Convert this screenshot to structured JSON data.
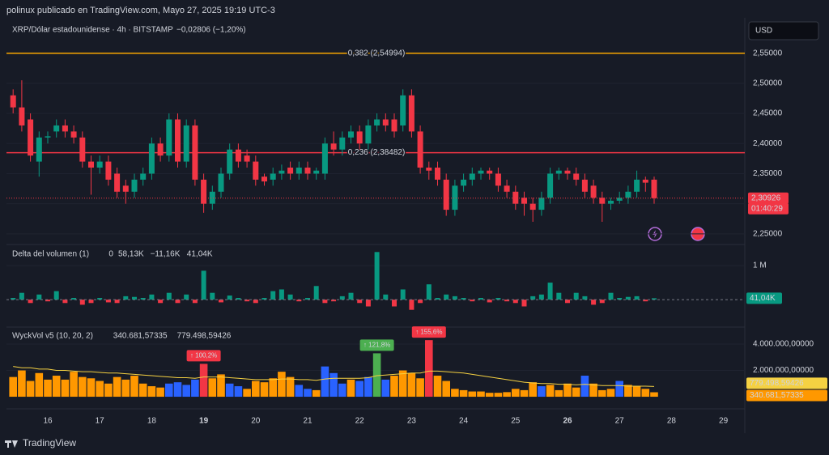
{
  "header": "polinux publicado en TradingView.com, Mayo 27, 2025 19:19 UTC-3",
  "currency": "USD",
  "footer": "TradingView",
  "x_labels": [
    {
      "label": "16",
      "bold": false
    },
    {
      "label": "17",
      "bold": false
    },
    {
      "label": "18",
      "bold": false
    },
    {
      "label": "19",
      "bold": true
    },
    {
      "label": "20",
      "bold": false
    },
    {
      "label": "21",
      "bold": false
    },
    {
      "label": "22",
      "bold": false
    },
    {
      "label": "23",
      "bold": false
    },
    {
      "label": "24",
      "bold": false
    },
    {
      "label": "25",
      "bold": false
    },
    {
      "label": "26",
      "bold": true
    },
    {
      "label": "27",
      "bold": false
    },
    {
      "label": "28",
      "bold": false
    },
    {
      "label": "29",
      "bold": false
    }
  ],
  "chart_data": [
    {
      "type": "candlestick",
      "title": "XRP/Dólar estadounidense · 4h · BITSTAMP",
      "change": "−0,02806 (−1,20%)",
      "up_color": "#089981",
      "down_color": "#f23645",
      "ylim": [
        2.235,
        2.598
      ],
      "yticks": [
        {
          "value": 2.55,
          "label": "2,55000"
        },
        {
          "value": 2.5,
          "label": "2,50000"
        },
        {
          "value": 2.45,
          "label": "2,45000"
        },
        {
          "value": 2.4,
          "label": "2,40000"
        },
        {
          "value": 2.35,
          "label": "2,35000"
        },
        {
          "value": 2.3,
          "label": "2,30000"
        },
        {
          "value": 2.25,
          "label": "2,25000"
        }
      ],
      "levels": [
        {
          "value": 2.54994,
          "label": "0,382 (2,54994)",
          "color": "#f7a600"
        },
        {
          "value": 2.38482,
          "label": "0,236 (2,38482)",
          "color": "#f23645"
        }
      ],
      "last_label": "2,30926",
      "countdown": "01:40:29",
      "candles": [
        [
          2.48,
          2.49,
          2.45,
          2.46
        ],
        [
          2.46,
          2.505,
          2.42,
          2.43
        ],
        [
          2.44,
          2.45,
          2.37,
          2.38
        ],
        [
          2.37,
          2.42,
          2.345,
          2.41
        ],
        [
          2.41,
          2.42,
          2.4,
          2.412
        ],
        [
          2.42,
          2.44,
          2.41,
          2.43
        ],
        [
          2.43,
          2.44,
          2.41,
          2.42
        ],
        [
          2.42,
          2.43,
          2.4,
          2.41
        ],
        [
          2.41,
          2.42,
          2.36,
          2.37
        ],
        [
          2.37,
          2.38,
          2.315,
          2.36
        ],
        [
          2.36,
          2.38,
          2.35,
          2.37
        ],
        [
          2.37,
          2.38,
          2.33,
          2.34
        ],
        [
          2.35,
          2.36,
          2.31,
          2.32
        ],
        [
          2.33,
          2.34,
          2.3,
          2.32
        ],
        [
          2.32,
          2.35,
          2.31,
          2.34
        ],
        [
          2.34,
          2.36,
          2.33,
          2.35
        ],
        [
          2.35,
          2.41,
          2.34,
          2.4
        ],
        [
          2.4,
          2.41,
          2.37,
          2.38
        ],
        [
          2.38,
          2.45,
          2.37,
          2.44
        ],
        [
          2.44,
          2.45,
          2.36,
          2.37
        ],
        [
          2.37,
          2.44,
          2.36,
          2.43
        ],
        [
          2.43,
          2.44,
          2.33,
          2.34
        ],
        [
          2.34,
          2.35,
          2.285,
          2.3
        ],
        [
          2.3,
          2.33,
          2.29,
          2.32
        ],
        [
          2.32,
          2.36,
          2.31,
          2.35
        ],
        [
          2.35,
          2.4,
          2.34,
          2.39
        ],
        [
          2.39,
          2.4,
          2.36,
          2.37
        ],
        [
          2.38,
          2.39,
          2.36,
          2.37
        ],
        [
          2.37,
          2.38,
          2.33,
          2.34
        ],
        [
          2.345,
          2.35,
          2.33,
          2.337
        ],
        [
          2.34,
          2.36,
          2.33,
          2.35
        ],
        [
          2.35,
          2.365,
          2.34,
          2.355
        ],
        [
          2.36,
          2.37,
          2.34,
          2.35
        ],
        [
          2.35,
          2.37,
          2.34,
          2.36
        ],
        [
          2.36,
          2.37,
          2.34,
          2.35
        ],
        [
          2.35,
          2.36,
          2.34,
          2.355
        ],
        [
          2.35,
          2.41,
          2.34,
          2.4
        ],
        [
          2.4,
          2.42,
          2.38,
          2.39
        ],
        [
          2.39,
          2.42,
          2.38,
          2.41
        ],
        [
          2.41,
          2.43,
          2.4,
          2.42
        ],
        [
          2.42,
          2.43,
          2.39,
          2.4
        ],
        [
          2.4,
          2.44,
          2.39,
          2.43
        ],
        [
          2.43,
          2.45,
          2.42,
          2.44
        ],
        [
          2.44,
          2.45,
          2.42,
          2.43
        ],
        [
          2.44,
          2.45,
          2.41,
          2.42
        ],
        [
          2.43,
          2.49,
          2.42,
          2.48
        ],
        [
          2.48,
          2.49,
          2.41,
          2.42
        ],
        [
          2.42,
          2.43,
          2.35,
          2.36
        ],
        [
          2.36,
          2.37,
          2.34,
          2.355
        ],
        [
          2.36,
          2.37,
          2.33,
          2.34
        ],
        [
          2.34,
          2.35,
          2.28,
          2.29
        ],
        [
          2.29,
          2.34,
          2.28,
          2.33
        ],
        [
          2.33,
          2.35,
          2.32,
          2.34
        ],
        [
          2.34,
          2.36,
          2.33,
          2.35
        ],
        [
          2.35,
          2.36,
          2.34,
          2.355
        ],
        [
          2.355,
          2.36,
          2.34,
          2.35
        ],
        [
          2.35,
          2.36,
          2.32,
          2.33
        ],
        [
          2.33,
          2.34,
          2.31,
          2.32
        ],
        [
          2.32,
          2.33,
          2.29,
          2.3
        ],
        [
          2.31,
          2.32,
          2.28,
          2.3
        ],
        [
          2.3,
          2.31,
          2.27,
          2.29
        ],
        [
          2.29,
          2.32,
          2.28,
          2.31
        ],
        [
          2.31,
          2.36,
          2.3,
          2.35
        ],
        [
          2.35,
          2.36,
          2.34,
          2.355
        ],
        [
          2.355,
          2.36,
          2.34,
          2.35
        ],
        [
          2.35,
          2.36,
          2.33,
          2.34
        ],
        [
          2.34,
          2.35,
          2.31,
          2.32
        ],
        [
          2.33,
          2.34,
          2.3,
          2.31
        ],
        [
          2.31,
          2.32,
          2.27,
          2.3
        ],
        [
          2.3,
          2.31,
          2.29,
          2.305
        ],
        [
          2.305,
          2.32,
          2.3,
          2.31
        ],
        [
          2.31,
          2.33,
          2.3,
          2.32
        ],
        [
          2.32,
          2.355,
          2.31,
          2.34
        ],
        [
          2.34,
          2.345,
          2.32,
          2.335
        ],
        [
          2.34,
          2.345,
          2.3,
          2.30926
        ]
      ]
    },
    {
      "type": "bar",
      "title": "Delta del volumen (1)",
      "legend": [
        "0",
        "58,13K",
        "−11,16K",
        "41,04K"
      ],
      "up_color": "#089981",
      "down_color": "#f23645",
      "last_label": "41,04K",
      "ylim": [
        -0.76,
        1.55
      ],
      "yticks": [
        {
          "value": 1,
          "label": "1 M"
        }
      ],
      "values": [
        0.05,
        0.2,
        -0.1,
        0.15,
        -0.05,
        0.25,
        -0.1,
        0.05,
        -0.15,
        -0.1,
        0.05,
        -0.08,
        -0.1,
        0.1,
        0.08,
        0.05,
        0.15,
        -0.1,
        0.2,
        -0.1,
        0.15,
        -0.1,
        0.85,
        0.2,
        -0.08,
        0.12,
        0.05,
        -0.05,
        -0.1,
        0.05,
        0.25,
        0.3,
        0.15,
        -0.05,
        0.05,
        0.4,
        -0.1,
        -0.05,
        0.1,
        0.2,
        -0.1,
        -0.2,
        1.4,
        0.15,
        -0.2,
        0.3,
        -0.3,
        -0.1,
        0.45,
        0.05,
        0.15,
        0.1,
        0.05,
        -0.05,
        0.05,
        -0.08,
        0.05,
        -0.05,
        -0.1,
        -0.2,
        0.1,
        0.15,
        0.5,
        0.2,
        -0.1,
        0.2,
        0.1,
        -0.15,
        -0.1,
        0.2,
        0.05,
        0.08,
        0.1,
        -0.05,
        0.04104
      ]
    },
    {
      "type": "bar",
      "title": "WyckVol v5 (10, 20, 2)",
      "legend": [
        {
          "label": "340.681,57335",
          "color": "#ff9800"
        },
        {
          "label": "779.498,59426",
          "color": "#f5d142"
        }
      ],
      "ylim": [
        -0.92,
        5.17
      ],
      "yticks": [
        {
          "value": 4,
          "label": "4.000.000,00000"
        },
        {
          "value": 2,
          "label": "2.000.000,00000"
        }
      ],
      "last_label": "340.681,57335",
      "ma_last_label": "779.498,59426",
      "values": [
        1.5,
        2.0,
        1.2,
        1.8,
        1.3,
        1.6,
        1.3,
        1.9,
        1.5,
        1.4,
        1.2,
        1.0,
        1.5,
        1.3,
        1.6,
        1.0,
        0.8,
        0.7,
        1.0,
        1.1,
        0.9,
        1.3,
        2.5,
        1.4,
        1.7,
        1.0,
        0.8,
        0.6,
        1.2,
        1.1,
        1.4,
        1.9,
        1.5,
        0.9,
        0.6,
        0.5,
        2.3,
        1.8,
        1.0,
        1.3,
        1.2,
        1.5,
        3.3,
        1.3,
        1.6,
        2.0,
        1.8,
        1.4,
        4.3,
        1.6,
        1.2,
        0.6,
        0.5,
        0.4,
        0.4,
        0.3,
        0.3,
        0.35,
        0.6,
        0.5,
        1.1,
        0.8,
        0.9,
        0.5,
        1.0,
        0.7,
        1.6,
        1.0,
        0.5,
        0.6,
        1.2,
        0.9,
        0.8,
        0.6,
        0.34068157335
      ],
      "colors": [
        "#ff9800",
        "#ff9800",
        "#ff9800",
        "#ff9800",
        "#ff9800",
        "#ff9800",
        "#ff9800",
        "#ff9800",
        "#ff9800",
        "#ff9800",
        "#ff9800",
        "#ff9800",
        "#ff9800",
        "#ff9800",
        "#ff9800",
        "#ff9800",
        "#ff9800",
        "#ff9800",
        "#2962ff",
        "#2962ff",
        "#2962ff",
        "#2962ff",
        "#f23645",
        "#ff9800",
        "#ff9800",
        "#2962ff",
        "#2962ff",
        "#ff9800",
        "#ff9800",
        "#ff9800",
        "#ff9800",
        "#ff9800",
        "#ff9800",
        "#2962ff",
        "#2962ff",
        "#ff9800",
        "#2962ff",
        "#2962ff",
        "#2962ff",
        "#ff9800",
        "#2962ff",
        "#2962ff",
        "#4caf50",
        "#2962ff",
        "#ff9800",
        "#ff9800",
        "#ff9800",
        "#ff9800",
        "#f23645",
        "#ff9800",
        "#ff9800",
        "#ff9800",
        "#ff9800",
        "#ff9800",
        "#ff9800",
        "#ff9800",
        "#ff9800",
        "#ff9800",
        "#ff9800",
        "#ff9800",
        "#ff9800",
        "#2962ff",
        "#ff9800",
        "#ff9800",
        "#ff9800",
        "#ff9800",
        "#2962ff",
        "#ff9800",
        "#ff9800",
        "#ff9800",
        "#2962ff",
        "#ff9800",
        "#ff9800",
        "#ff9800",
        "#ff9800"
      ],
      "ma": {
        "color": "#f5d142",
        "values": [
          2.3,
          2.2,
          2.2,
          2.1,
          2.1,
          2.0,
          2.0,
          1.95,
          1.9,
          1.9,
          1.85,
          1.8,
          1.8,
          1.75,
          1.7,
          1.65,
          1.6,
          1.55,
          1.5,
          1.45,
          1.45,
          1.4,
          1.5,
          1.5,
          1.5,
          1.45,
          1.4,
          1.35,
          1.3,
          1.3,
          1.3,
          1.35,
          1.35,
          1.3,
          1.3,
          1.25,
          1.35,
          1.4,
          1.4,
          1.4,
          1.4,
          1.45,
          1.6,
          1.65,
          1.7,
          1.75,
          1.8,
          1.8,
          1.95,
          1.95,
          1.9,
          1.85,
          1.8,
          1.7,
          1.6,
          1.5,
          1.4,
          1.3,
          1.2,
          1.1,
          1.05,
          1.0,
          1.0,
          0.95,
          0.95,
          0.9,
          0.95,
          0.9,
          0.85,
          0.85,
          0.85,
          0.8,
          0.8,
          0.8,
          0.77949859426
        ]
      },
      "annotations": [
        {
          "text": "↑ 100,2%",
          "bar": 22,
          "color": "#f23645"
        },
        {
          "text": "↑ 121,8%",
          "bar": 42,
          "color": "#4caf50"
        },
        {
          "text": "↑ 155,6%",
          "bar": 48,
          "color": "#f23645"
        }
      ]
    }
  ]
}
